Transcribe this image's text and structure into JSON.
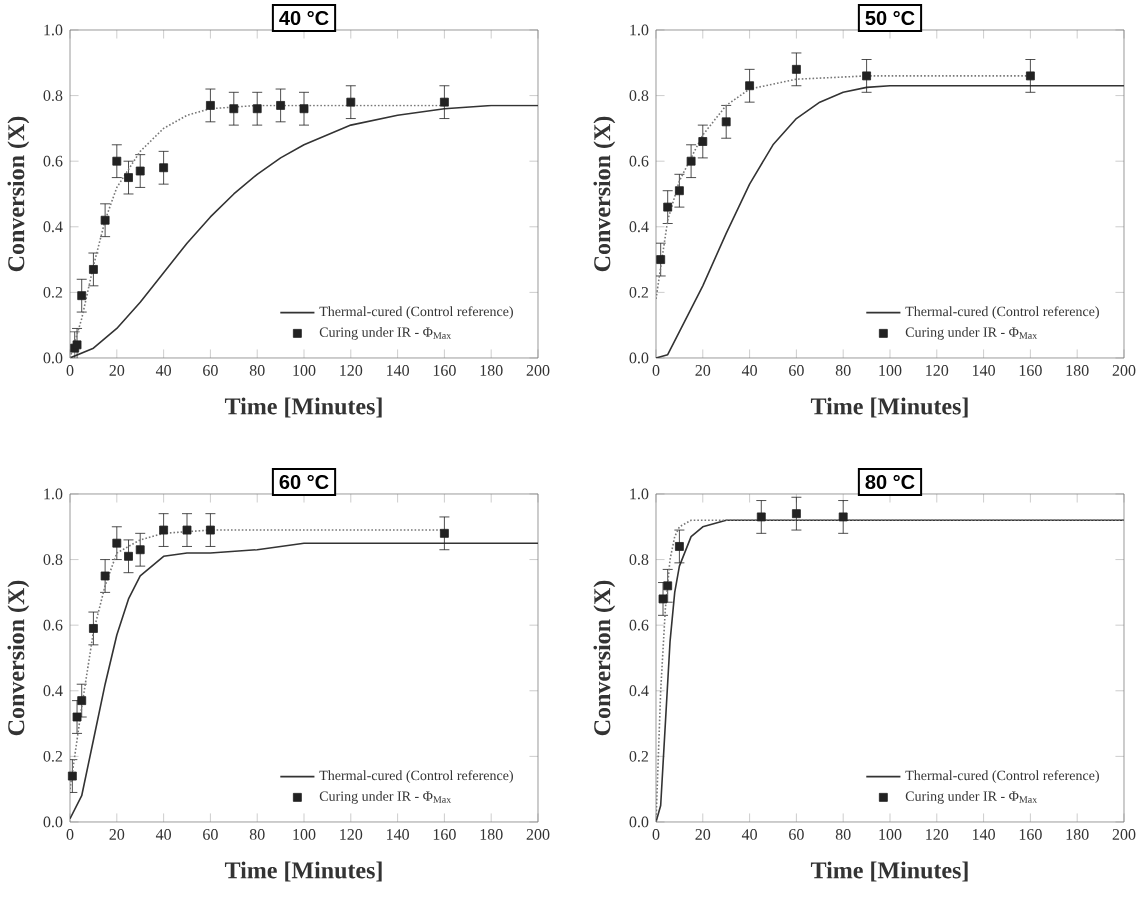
{
  "chart_data": [
    {
      "type": "scatter",
      "title": "40 °C",
      "xlabel": "Time [Minutes]",
      "ylabel": "Conversion (X)",
      "xlim": [
        0,
        200
      ],
      "ylim": [
        0,
        1
      ],
      "xticks": [
        0,
        20,
        40,
        60,
        80,
        100,
        120,
        140,
        160,
        180,
        200
      ],
      "yticks": [
        {
          "value": 0,
          "label": "0.0"
        },
        {
          "value": 0.2,
          "label": "0.2"
        },
        {
          "value": 0.4,
          "label": "0.4"
        },
        {
          "value": 0.6,
          "label": "0.6"
        },
        {
          "value": 0.8,
          "label": "0.8"
        },
        {
          "value": 1,
          "label": "1.0"
        }
      ],
      "legend": "bottom right",
      "series": [
        {
          "name": "Thermal-cured (Control reference)",
          "type": "line",
          "line_style": "solid",
          "color": "#333333",
          "x": [
            0,
            10,
            20,
            30,
            40,
            50,
            60,
            70,
            80,
            90,
            100,
            120,
            140,
            160,
            180,
            200
          ],
          "values": [
            0,
            0.03,
            0.09,
            0.17,
            0.26,
            0.35,
            0.43,
            0.5,
            0.56,
            0.61,
            0.65,
            0.71,
            0.74,
            0.76,
            0.77,
            0.77
          ]
        },
        {
          "name": "Curing under IR - Φ$_{Max}$",
          "marker": "square",
          "color": "#222222",
          "x": [
            2,
            3,
            5,
            10,
            15,
            20,
            25,
            30,
            40,
            60,
            70,
            80,
            90,
            100,
            120,
            160
          ],
          "values": [
            0.03,
            0.04,
            0.19,
            0.27,
            0.42,
            0.6,
            0.55,
            0.57,
            0.58,
            0.77,
            0.76,
            0.76,
            0.77,
            0.76,
            0.78,
            0.78
          ],
          "errors": [
            0.05,
            0.05,
            0.05,
            0.05,
            0.05,
            0.05,
            0.05,
            0.05,
            0.05,
            0.05,
            0.05,
            0.05,
            0.05,
            0.05,
            0.05,
            0.05
          ]
        },
        {
          "type": "line",
          "line_style": "dotted",
          "color": "#777777",
          "x": [
            0,
            5,
            10,
            15,
            20,
            30,
            40,
            50,
            60,
            80,
            100,
            160
          ],
          "values": [
            0,
            0.12,
            0.28,
            0.42,
            0.52,
            0.63,
            0.7,
            0.74,
            0.76,
            0.77,
            0.77,
            0.77
          ]
        }
      ]
    },
    {
      "type": "scatter",
      "title": "50 °C",
      "xlabel": "Time [Minutes]",
      "ylabel": "Conversion (X)",
      "xlim": [
        0,
        200
      ],
      "ylim": [
        0,
        1
      ],
      "xticks": [
        0,
        20,
        40,
        60,
        80,
        100,
        120,
        140,
        160,
        180,
        200
      ],
      "yticks": [
        {
          "value": 0,
          "label": "0.0"
        },
        {
          "value": 0.2,
          "label": "0.2"
        },
        {
          "value": 0.4,
          "label": "0.4"
        },
        {
          "value": 0.6,
          "label": "0.6"
        },
        {
          "value": 0.8,
          "label": "0.8"
        },
        {
          "value": 1,
          "label": "1.0"
        }
      ],
      "legend": "bottom right",
      "series": [
        {
          "name": "Thermal-cured (Control reference)",
          "type": "line",
          "line_style": "solid",
          "color": "#333333",
          "x": [
            0,
            5,
            10,
            20,
            30,
            40,
            50,
            60,
            70,
            80,
            90,
            100,
            200
          ],
          "values": [
            0,
            0.01,
            0.08,
            0.22,
            0.38,
            0.53,
            0.65,
            0.73,
            0.78,
            0.81,
            0.825,
            0.83,
            0.83
          ]
        },
        {
          "name": "Curing under IR - Φ$_{Max}$",
          "marker": "square",
          "color": "#222222",
          "x": [
            2,
            5,
            10,
            15,
            20,
            30,
            40,
            60,
            90,
            160
          ],
          "values": [
            0.3,
            0.46,
            0.51,
            0.6,
            0.66,
            0.72,
            0.83,
            0.88,
            0.86,
            0.86
          ],
          "errors": [
            0.05,
            0.05,
            0.05,
            0.05,
            0.05,
            0.05,
            0.05,
            0.05,
            0.05,
            0.05
          ]
        },
        {
          "type": "line",
          "line_style": "dotted",
          "color": "#777777",
          "x": [
            0,
            5,
            10,
            20,
            30,
            40,
            60,
            90,
            160
          ],
          "values": [
            0.18,
            0.42,
            0.54,
            0.68,
            0.77,
            0.82,
            0.85,
            0.86,
            0.86
          ]
        }
      ]
    },
    {
      "type": "scatter",
      "title": "60 °C",
      "xlabel": "Time [Minutes]",
      "ylabel": "Conversion (X)",
      "xlim": [
        0,
        200
      ],
      "ylim": [
        0,
        1
      ],
      "xticks": [
        0,
        20,
        40,
        60,
        80,
        100,
        120,
        140,
        160,
        180,
        200
      ],
      "yticks": [
        {
          "value": 0,
          "label": "0.0"
        },
        {
          "value": 0.2,
          "label": "0.2"
        },
        {
          "value": 0.4,
          "label": "0.4"
        },
        {
          "value": 0.6,
          "label": "0.6"
        },
        {
          "value": 0.8,
          "label": "0.8"
        },
        {
          "value": 1,
          "label": "1.0"
        }
      ],
      "legend": "bottom right",
      "series": [
        {
          "name": "Thermal-cured (Control reference)",
          "type": "line",
          "line_style": "solid",
          "color": "#333333",
          "x": [
            0,
            5,
            10,
            15,
            20,
            25,
            30,
            40,
            50,
            60,
            80,
            100,
            200
          ],
          "values": [
            0.01,
            0.08,
            0.25,
            0.42,
            0.57,
            0.68,
            0.75,
            0.81,
            0.82,
            0.82,
            0.83,
            0.85,
            0.85
          ]
        },
        {
          "name": "Curing under IR - Φ$_{Max}$",
          "marker": "square",
          "color": "#222222",
          "x": [
            1,
            3,
            5,
            10,
            15,
            20,
            25,
            30,
            40,
            50,
            60,
            160
          ],
          "values": [
            0.14,
            0.32,
            0.37,
            0.59,
            0.75,
            0.85,
            0.81,
            0.83,
            0.89,
            0.89,
            0.89,
            0.88
          ],
          "errors": [
            0.05,
            0.05,
            0.05,
            0.05,
            0.05,
            0.05,
            0.05,
            0.05,
            0.05,
            0.05,
            0.05,
            0.05
          ]
        },
        {
          "type": "line",
          "line_style": "dotted",
          "color": "#777777",
          "x": [
            0,
            5,
            10,
            15,
            20,
            30,
            40,
            60,
            160
          ],
          "values": [
            0.1,
            0.35,
            0.58,
            0.72,
            0.82,
            0.86,
            0.88,
            0.89,
            0.89
          ]
        }
      ]
    },
    {
      "type": "scatter",
      "title": "80 °C",
      "xlabel": "Time [Minutes]",
      "ylabel": "Conversion (X)",
      "xlim": [
        0,
        200
      ],
      "ylim": [
        0,
        1
      ],
      "xticks": [
        0,
        20,
        40,
        60,
        80,
        100,
        120,
        140,
        160,
        180,
        200
      ],
      "yticks": [
        {
          "value": 0,
          "label": "0.0"
        },
        {
          "value": 0.2,
          "label": "0.2"
        },
        {
          "value": 0.4,
          "label": "0.4"
        },
        {
          "value": 0.6,
          "label": "0.6"
        },
        {
          "value": 0.8,
          "label": "0.8"
        },
        {
          "value": 1,
          "label": "1.0"
        }
      ],
      "legend": "bottom right",
      "series": [
        {
          "name": "Thermal-cured (Control reference)",
          "type": "line",
          "line_style": "solid",
          "color": "#333333",
          "x": [
            0,
            2,
            4,
            6,
            8,
            10,
            15,
            20,
            30,
            200
          ],
          "values": [
            0,
            0.05,
            0.3,
            0.55,
            0.7,
            0.78,
            0.87,
            0.9,
            0.92,
            0.92
          ]
        },
        {
          "name": "Curing under IR - Φ$_{Max}$",
          "marker": "square",
          "color": "#222222",
          "x": [
            3,
            5,
            10,
            45,
            60,
            80
          ],
          "values": [
            0.68,
            0.72,
            0.84,
            0.93,
            0.94,
            0.93
          ],
          "errors": [
            0.05,
            0.05,
            0.05,
            0.05,
            0.05,
            0.05
          ]
        },
        {
          "type": "line",
          "line_style": "dotted",
          "color": "#777777",
          "x": [
            0,
            2,
            4,
            6,
            8,
            10,
            15,
            200
          ],
          "values": [
            0,
            0.4,
            0.65,
            0.8,
            0.87,
            0.9,
            0.92,
            0.92
          ]
        }
      ]
    }
  ]
}
